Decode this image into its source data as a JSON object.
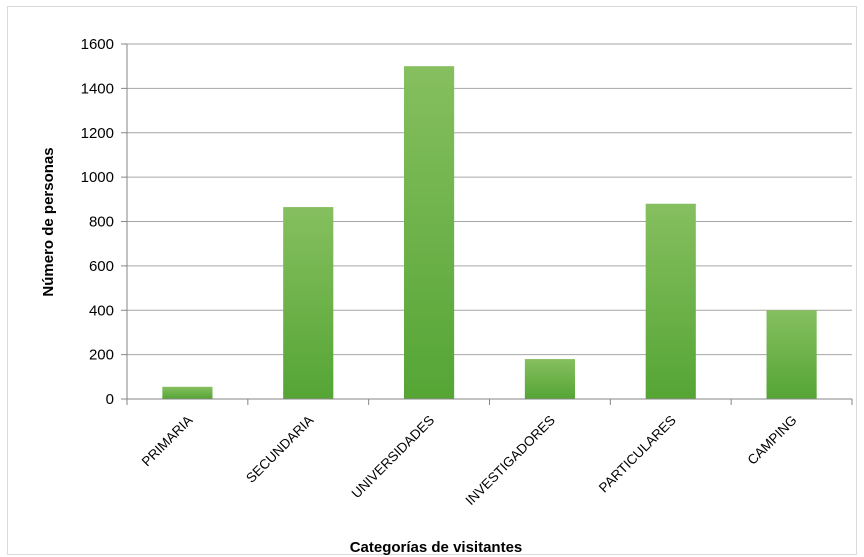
{
  "chart_data": {
    "type": "bar",
    "categories": [
      "PRIMARIA",
      "SECUNDARIA",
      "UNIVERSIDADES",
      "INVESTIGADORES",
      "PARTICULARES",
      "CAMPING"
    ],
    "values": [
      55,
      865,
      1500,
      180,
      880,
      400
    ],
    "xlabel": "Categorías de visitantes",
    "ylabel": "Número de personas",
    "ylim": [
      0,
      1600
    ],
    "yticks": [
      0,
      200,
      400,
      600,
      800,
      1000,
      1200,
      1400,
      1600
    ],
    "grid": true,
    "legend": "none",
    "colors": {
      "bar_top": "#86bf5f",
      "bar_bottom": "#55a535",
      "grid": "#a6a6a6",
      "axis": "#868686"
    }
  }
}
